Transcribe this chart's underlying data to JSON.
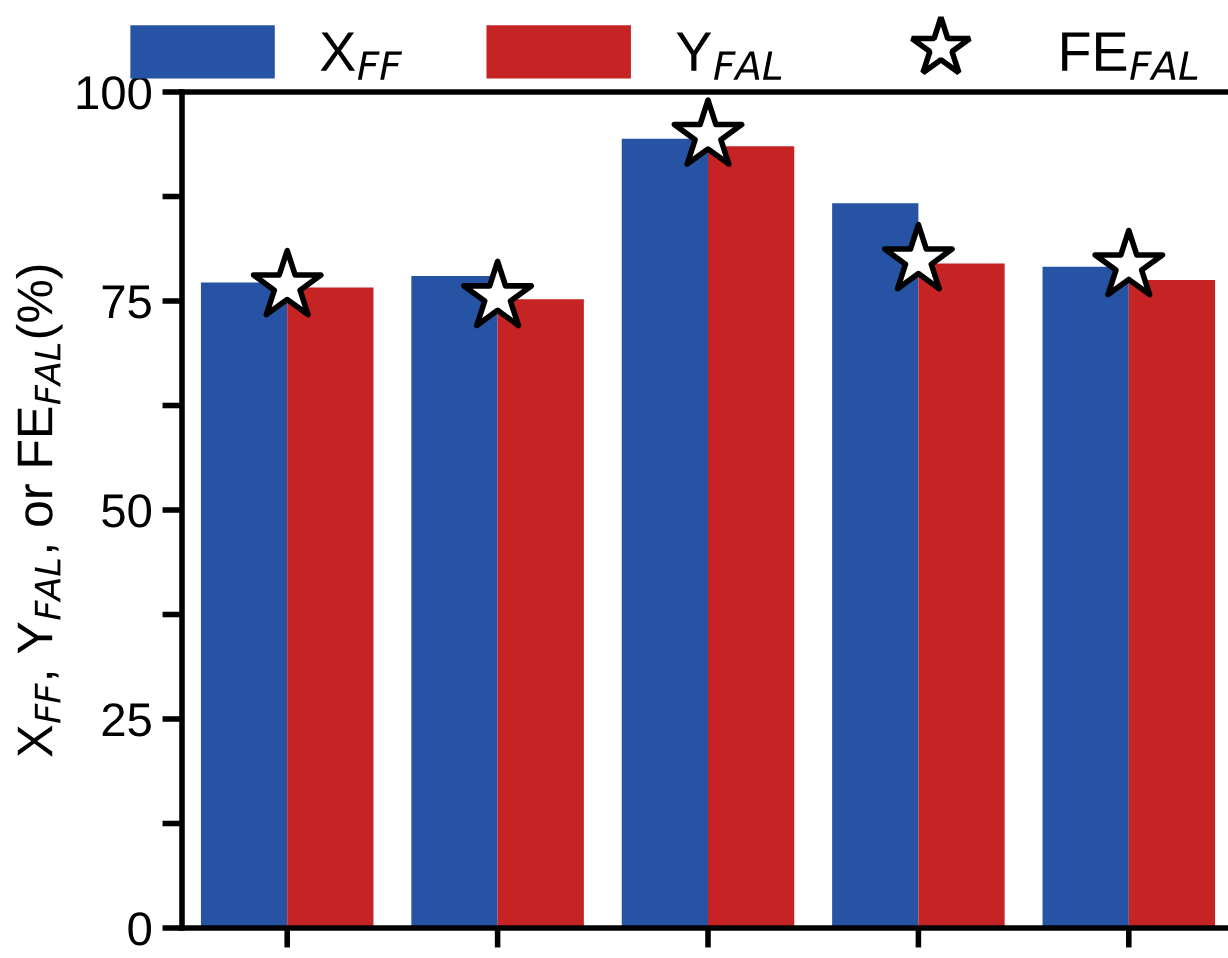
{
  "chart_data": {
    "type": "bar",
    "ylabel": "X$_{FF}$, Y$_{FAL}$, or FE$_{FAL}$(%)",
    "categories": [
      null,
      null,
      null,
      null,
      null
    ],
    "series": [
      {
        "name": "X$_{FF}$",
        "color": "#2653a3",
        "values": [
          77.2,
          78.0,
          94.4,
          86.7,
          79.1
        ]
      },
      {
        "name": "Y$_{FAL}$",
        "color": "#c62325",
        "values": [
          76.6,
          75.2,
          93.5,
          79.5,
          77.5
        ]
      },
      {
        "name": "FE$_{FAL}$",
        "type": "scatter",
        "marker": "star",
        "color": "#ffffff",
        "values": [
          76.8,
          75.5,
          94.8,
          79.9,
          79.2
        ]
      }
    ],
    "ylim": [
      0,
      100
    ],
    "yticks": [
      0,
      {
        "value": 12.5,
        "label": null
      },
      25,
      {
        "value": 37.5,
        "label": null
      },
      50,
      {
        "value": 62.5,
        "label": null
      },
      75,
      {
        "value": 87.5,
        "label": null
      },
      100
    ],
    "legend": "top",
    "grid": false
  }
}
